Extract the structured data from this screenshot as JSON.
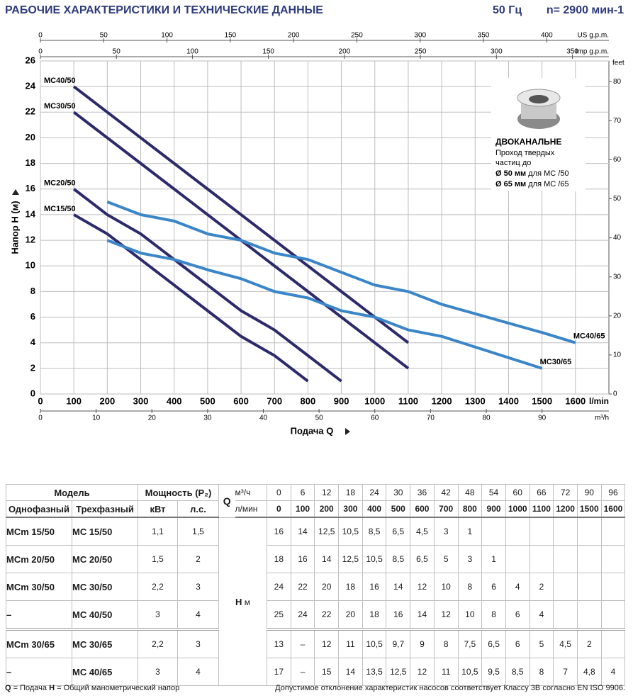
{
  "header": {
    "title": "РАБОЧИЕ ХАРАКТЕРИСТИКИ И ТЕХНИЧЕСКИЕ ДАННЫЕ",
    "freq": "50 Гц",
    "speed": "n= 2900 мин-1"
  },
  "chart_data": {
    "type": "line",
    "x_label": "Подача Q",
    "y_label": "Напор H (м)",
    "xlim": [
      0,
      1700
    ],
    "xticks": [
      0,
      100,
      200,
      300,
      400,
      500,
      600,
      700,
      800,
      900,
      1000,
      1100,
      1200,
      1300,
      1400,
      1500,
      1600
    ],
    "x_unit": "l/min",
    "ylim": [
      0,
      26
    ],
    "yticks": [
      0,
      2,
      4,
      6,
      8,
      10,
      12,
      14,
      16,
      18,
      20,
      22,
      24,
      26
    ],
    "y2lim": [
      0,
      85.3
    ],
    "y2ticks": [
      0,
      10,
      20,
      30,
      40,
      50,
      60,
      70,
      80
    ],
    "y2_unit": "feet",
    "secondary_x": [
      {
        "name": "US g.p.m.",
        "position": "top",
        "lim": [
          0,
          449.1
        ],
        "ticks": [
          0,
          50,
          100,
          150,
          200,
          250,
          300,
          350,
          400
        ]
      },
      {
        "name": "Imp g.p.m.",
        "position": "top",
        "lim": [
          0,
          374
        ],
        "ticks": [
          0,
          50,
          100,
          150,
          200,
          250,
          300,
          350
        ]
      },
      {
        "name": "m³/h",
        "position": "bottom",
        "lim": [
          0,
          102
        ],
        "ticks": [
          0,
          10,
          20,
          30,
          40,
          50,
          60,
          70,
          80,
          90
        ]
      }
    ],
    "grid": true,
    "series": [
      {
        "name": "MC40/50",
        "color": "#2c2a6b",
        "x": [
          100,
          200,
          300,
          400,
          500,
          600,
          700,
          800,
          900,
          1000,
          1100
        ],
        "values": [
          24,
          22,
          20,
          18,
          16,
          14,
          12,
          10,
          8,
          6,
          4
        ]
      },
      {
        "name": "MC30/50",
        "color": "#2c2a6b",
        "x": [
          100,
          200,
          300,
          400,
          500,
          600,
          700,
          800,
          900,
          1000,
          1100
        ],
        "values": [
          22,
          20,
          18,
          16,
          14,
          12,
          10,
          8,
          6,
          4,
          2
        ]
      },
      {
        "name": "MC20/50",
        "color": "#2c2a6b",
        "x": [
          100,
          200,
          300,
          400,
          500,
          600,
          700,
          800,
          900
        ],
        "values": [
          16,
          14,
          12.5,
          10.5,
          8.5,
          6.5,
          5,
          3,
          1
        ]
      },
      {
        "name": "MC15/50",
        "color": "#2c2a6b",
        "x": [
          100,
          200,
          300,
          400,
          500,
          600,
          700,
          800
        ],
        "values": [
          14,
          12.5,
          10.5,
          8.5,
          6.5,
          4.5,
          3,
          1
        ]
      },
      {
        "name": "MC40/65",
        "color": "#3a86c8",
        "x": [
          200,
          300,
          400,
          500,
          600,
          700,
          800,
          900,
          1000,
          1100,
          1200,
          1500,
          1600
        ],
        "values": [
          15,
          14,
          13.5,
          12.5,
          12,
          11,
          10.5,
          9.5,
          8.5,
          8,
          7,
          4.8,
          4
        ]
      },
      {
        "name": "MC30/65",
        "color": "#3a86c8",
        "x": [
          200,
          300,
          400,
          500,
          600,
          700,
          800,
          900,
          1000,
          1100,
          1200,
          1500
        ],
        "values": [
          12,
          11,
          10.5,
          9.7,
          9,
          8,
          7.5,
          6.5,
          6,
          5,
          4.5,
          2
        ]
      }
    ],
    "inset": {
      "title": "ДВОКАНАЛЬНЕ",
      "lines": [
        "Проход твердых",
        "частиц до"
      ],
      "sizes": [
        {
          "bold": "Ø 50 мм",
          "text": "для МС /50"
        },
        {
          "bold": "Ø 65 мм",
          "text": "для МС /65"
        }
      ]
    }
  },
  "table": {
    "headers": {
      "model": "Модель",
      "single": "Однофазный",
      "three": "Трехфазный",
      "power": "Мощность (P₂)",
      "kw": "кВт",
      "hp": "л.с.",
      "q": "Q",
      "m3h_unit": "м³/ч",
      "lmin_unit": "л/мин",
      "h": "H",
      "h_unit": "м",
      "m3h": [
        0,
        6,
        12,
        18,
        24,
        30,
        36,
        42,
        48,
        54,
        60,
        66,
        72,
        90,
        96
      ],
      "lmin": [
        0,
        100,
        200,
        300,
        400,
        500,
        600,
        700,
        800,
        900,
        1000,
        1100,
        1200,
        1500,
        1600
      ]
    },
    "rows": [
      {
        "single": "MCm 15/50",
        "three": "MC 15/50",
        "kw": "1,1",
        "hp": "1,5",
        "values": [
          "16",
          "14",
          "12,5",
          "10,5",
          "8,5",
          "6,5",
          "4,5",
          "3",
          "1",
          null,
          null,
          null,
          null,
          null,
          null
        ]
      },
      {
        "single": "MCm 20/50",
        "three": "MC 20/50",
        "kw": "1,5",
        "hp": "2",
        "values": [
          "18",
          "16",
          "14",
          "12,5",
          "10,5",
          "8,5",
          "6,5",
          "5",
          "3",
          "1",
          null,
          null,
          null,
          null,
          null
        ]
      },
      {
        "single": "MCm 30/50",
        "three": "MC 30/50",
        "kw": "2,2",
        "hp": "3",
        "values": [
          "24",
          "22",
          "20",
          "18",
          "16",
          "14",
          "12",
          "10",
          "8",
          "6",
          "4",
          "2",
          null,
          null,
          null
        ]
      },
      {
        "single": "–",
        "three": "MC 40/50",
        "kw": "3",
        "hp": "4",
        "values": [
          "25",
          "24",
          "22",
          "20",
          "18",
          "16",
          "14",
          "12",
          "10",
          "8",
          "6",
          "4",
          null,
          null,
          null
        ]
      },
      {
        "single": "MCm 30/65",
        "three": "MC 30/65",
        "kw": "2,2",
        "hp": "3",
        "values": [
          "13",
          "–",
          "12",
          "11",
          "10,5",
          "9,7",
          "9",
          "8",
          "7,5",
          "6,5",
          "6",
          "5",
          "4,5",
          "2",
          null
        ]
      },
      {
        "single": "–",
        "three": "MC 40/65",
        "kw": "3",
        "hp": "4",
        "values": [
          "17",
          "–",
          "15",
          "14",
          "13,5",
          "12,5",
          "12",
          "11",
          "10,5",
          "9,5",
          "8,5",
          "8",
          "7",
          "4,8",
          "4"
        ]
      }
    ]
  },
  "footer": {
    "legend": [
      {
        "key": "Q",
        "text": "= Подача"
      },
      {
        "key": "H",
        "text": "= Общий манометрический напор"
      }
    ],
    "note": "Допустимое отклонение характеристик насосов соответствует Классу 3B согласно EN ISO 9906."
  }
}
